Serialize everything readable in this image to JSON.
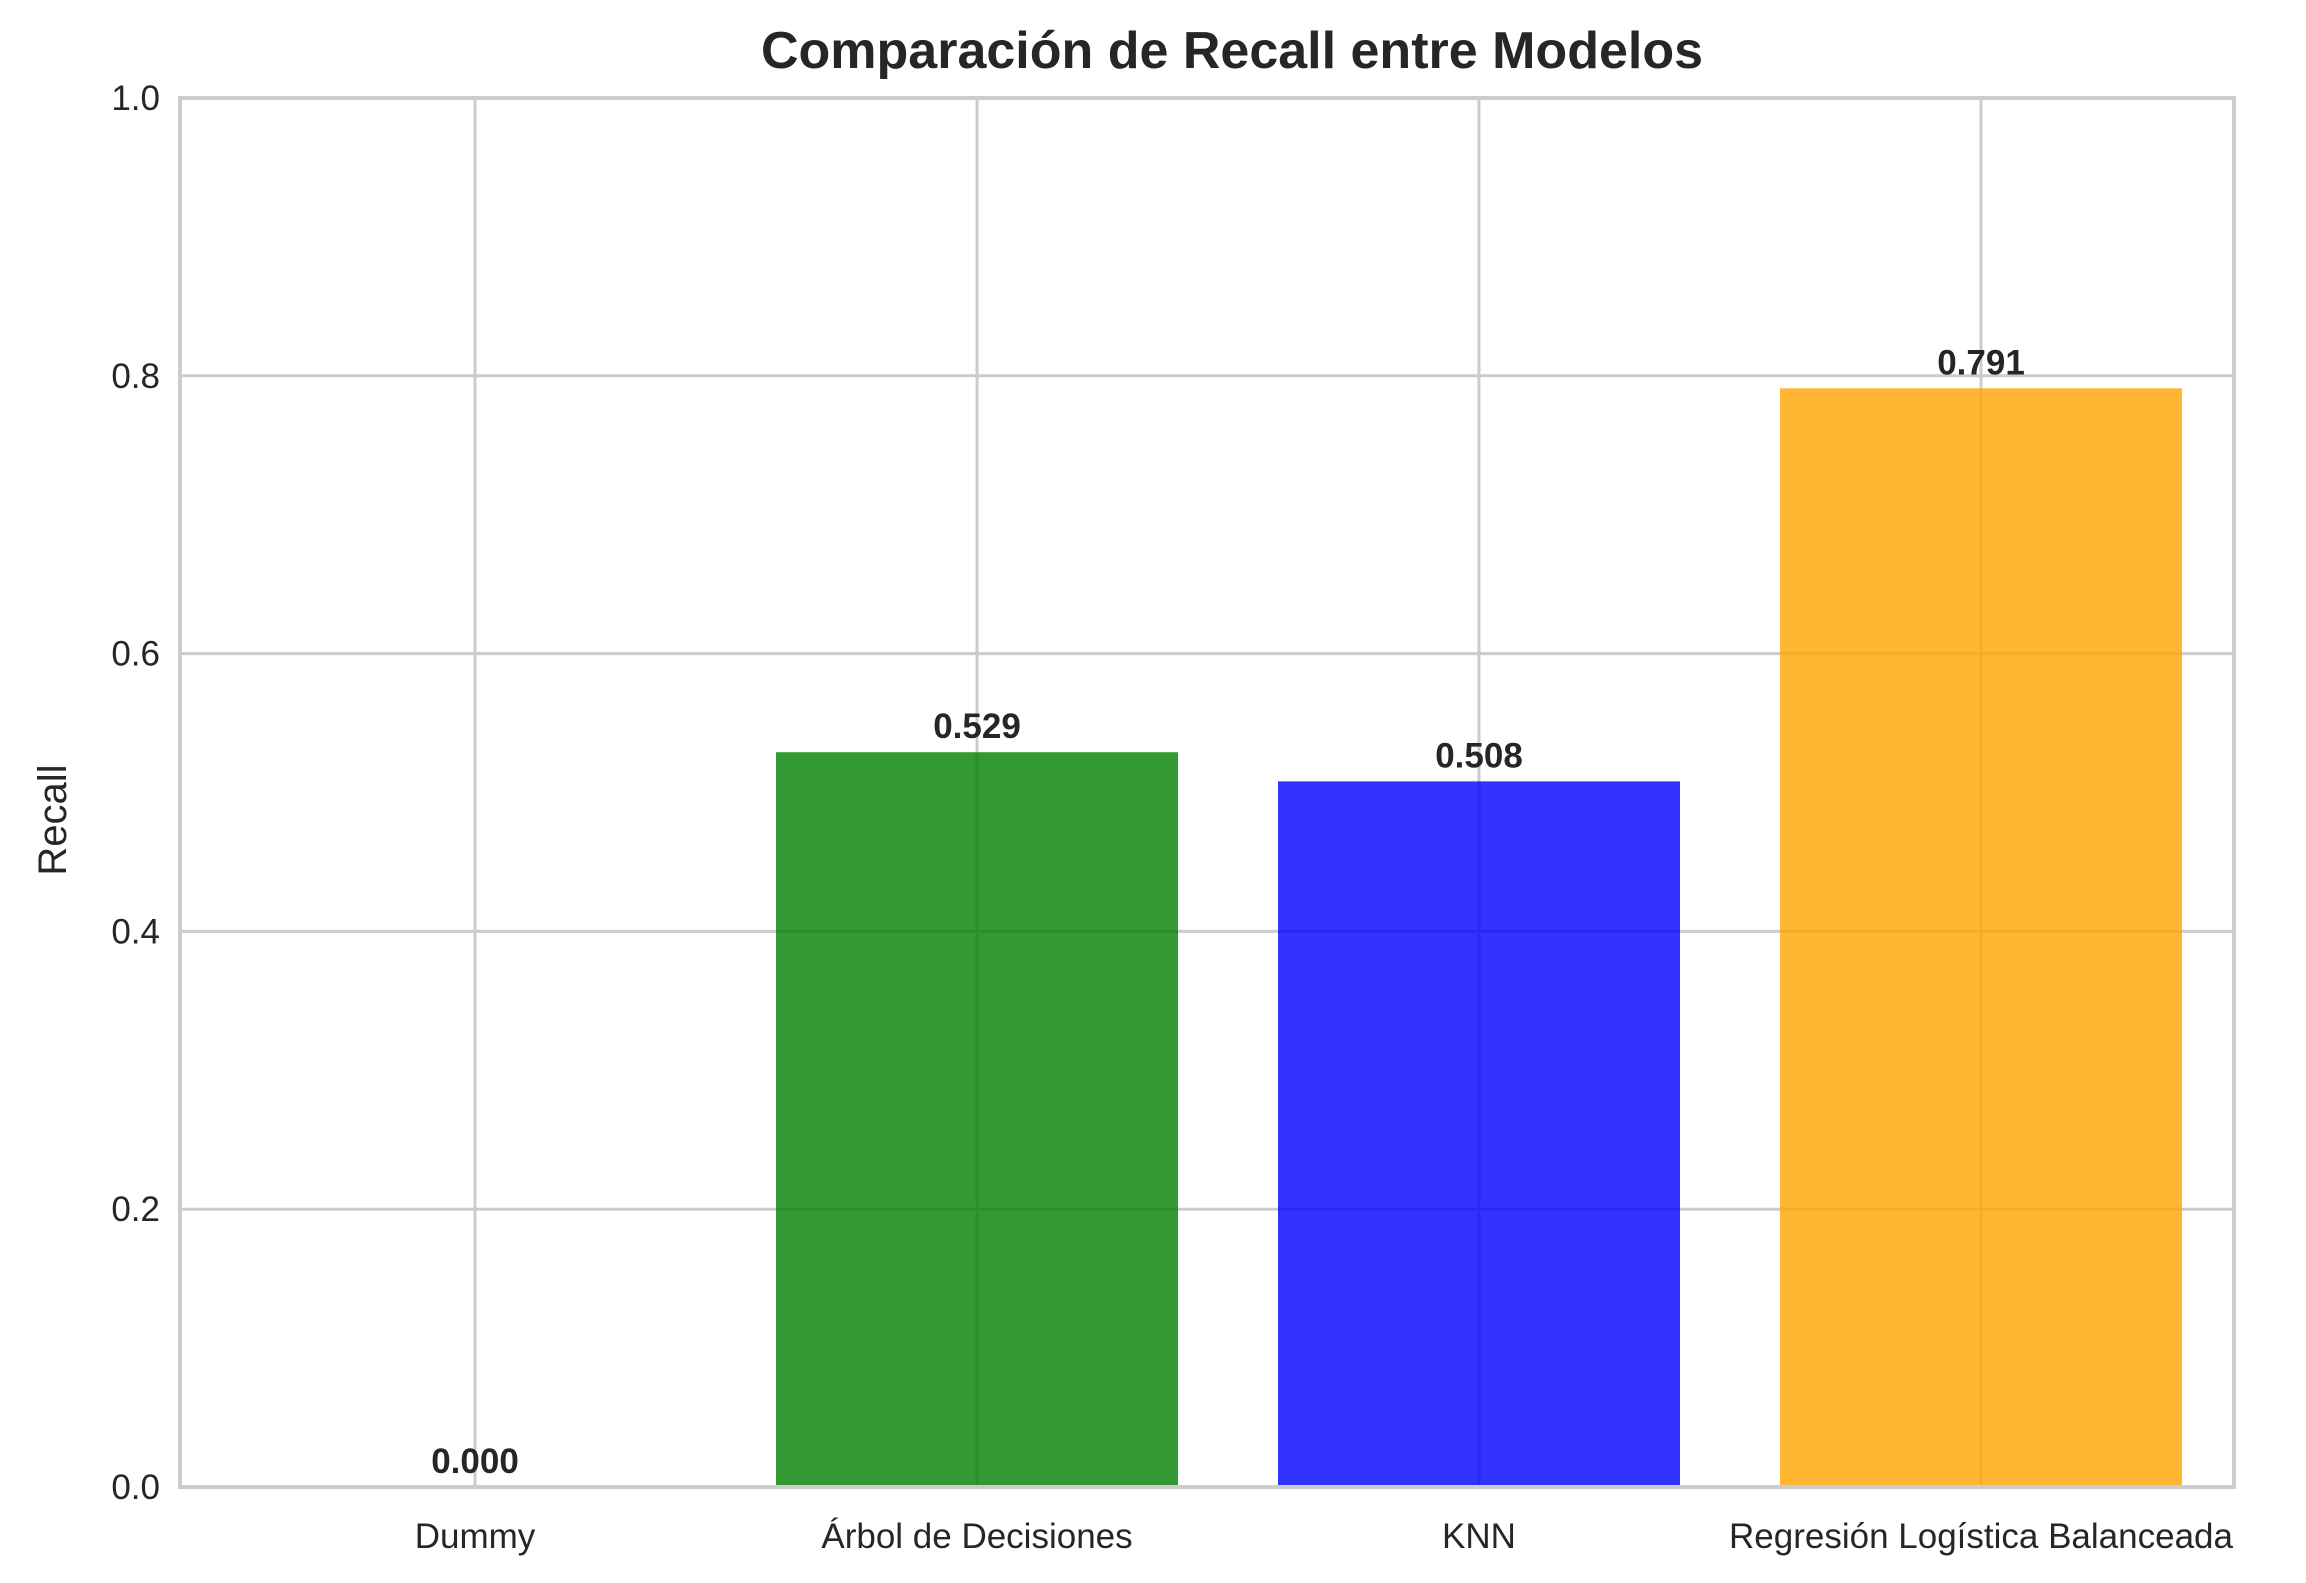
{
  "chart_data": {
    "type": "bar",
    "title": "Comparación de Recall entre Modelos",
    "xlabel": "",
    "ylabel": "Recall",
    "ylim": [
      0,
      1.0
    ],
    "yticks": [
      "0.0",
      "0.2",
      "0.4",
      "0.6",
      "0.8",
      "1.0"
    ],
    "categories": [
      "Dummy",
      "Árbol de Decisiones",
      "KNN",
      "Regresión Logística Balanceada"
    ],
    "values": [
      0.0,
      0.529,
      0.508,
      0.791
    ],
    "data_labels": [
      "0.000",
      "0.529",
      "0.508",
      "0.791"
    ],
    "colors": [
      "#808080",
      "#008000",
      "#0000ff",
      "#ffa500"
    ],
    "grid": true,
    "legend": "none"
  }
}
